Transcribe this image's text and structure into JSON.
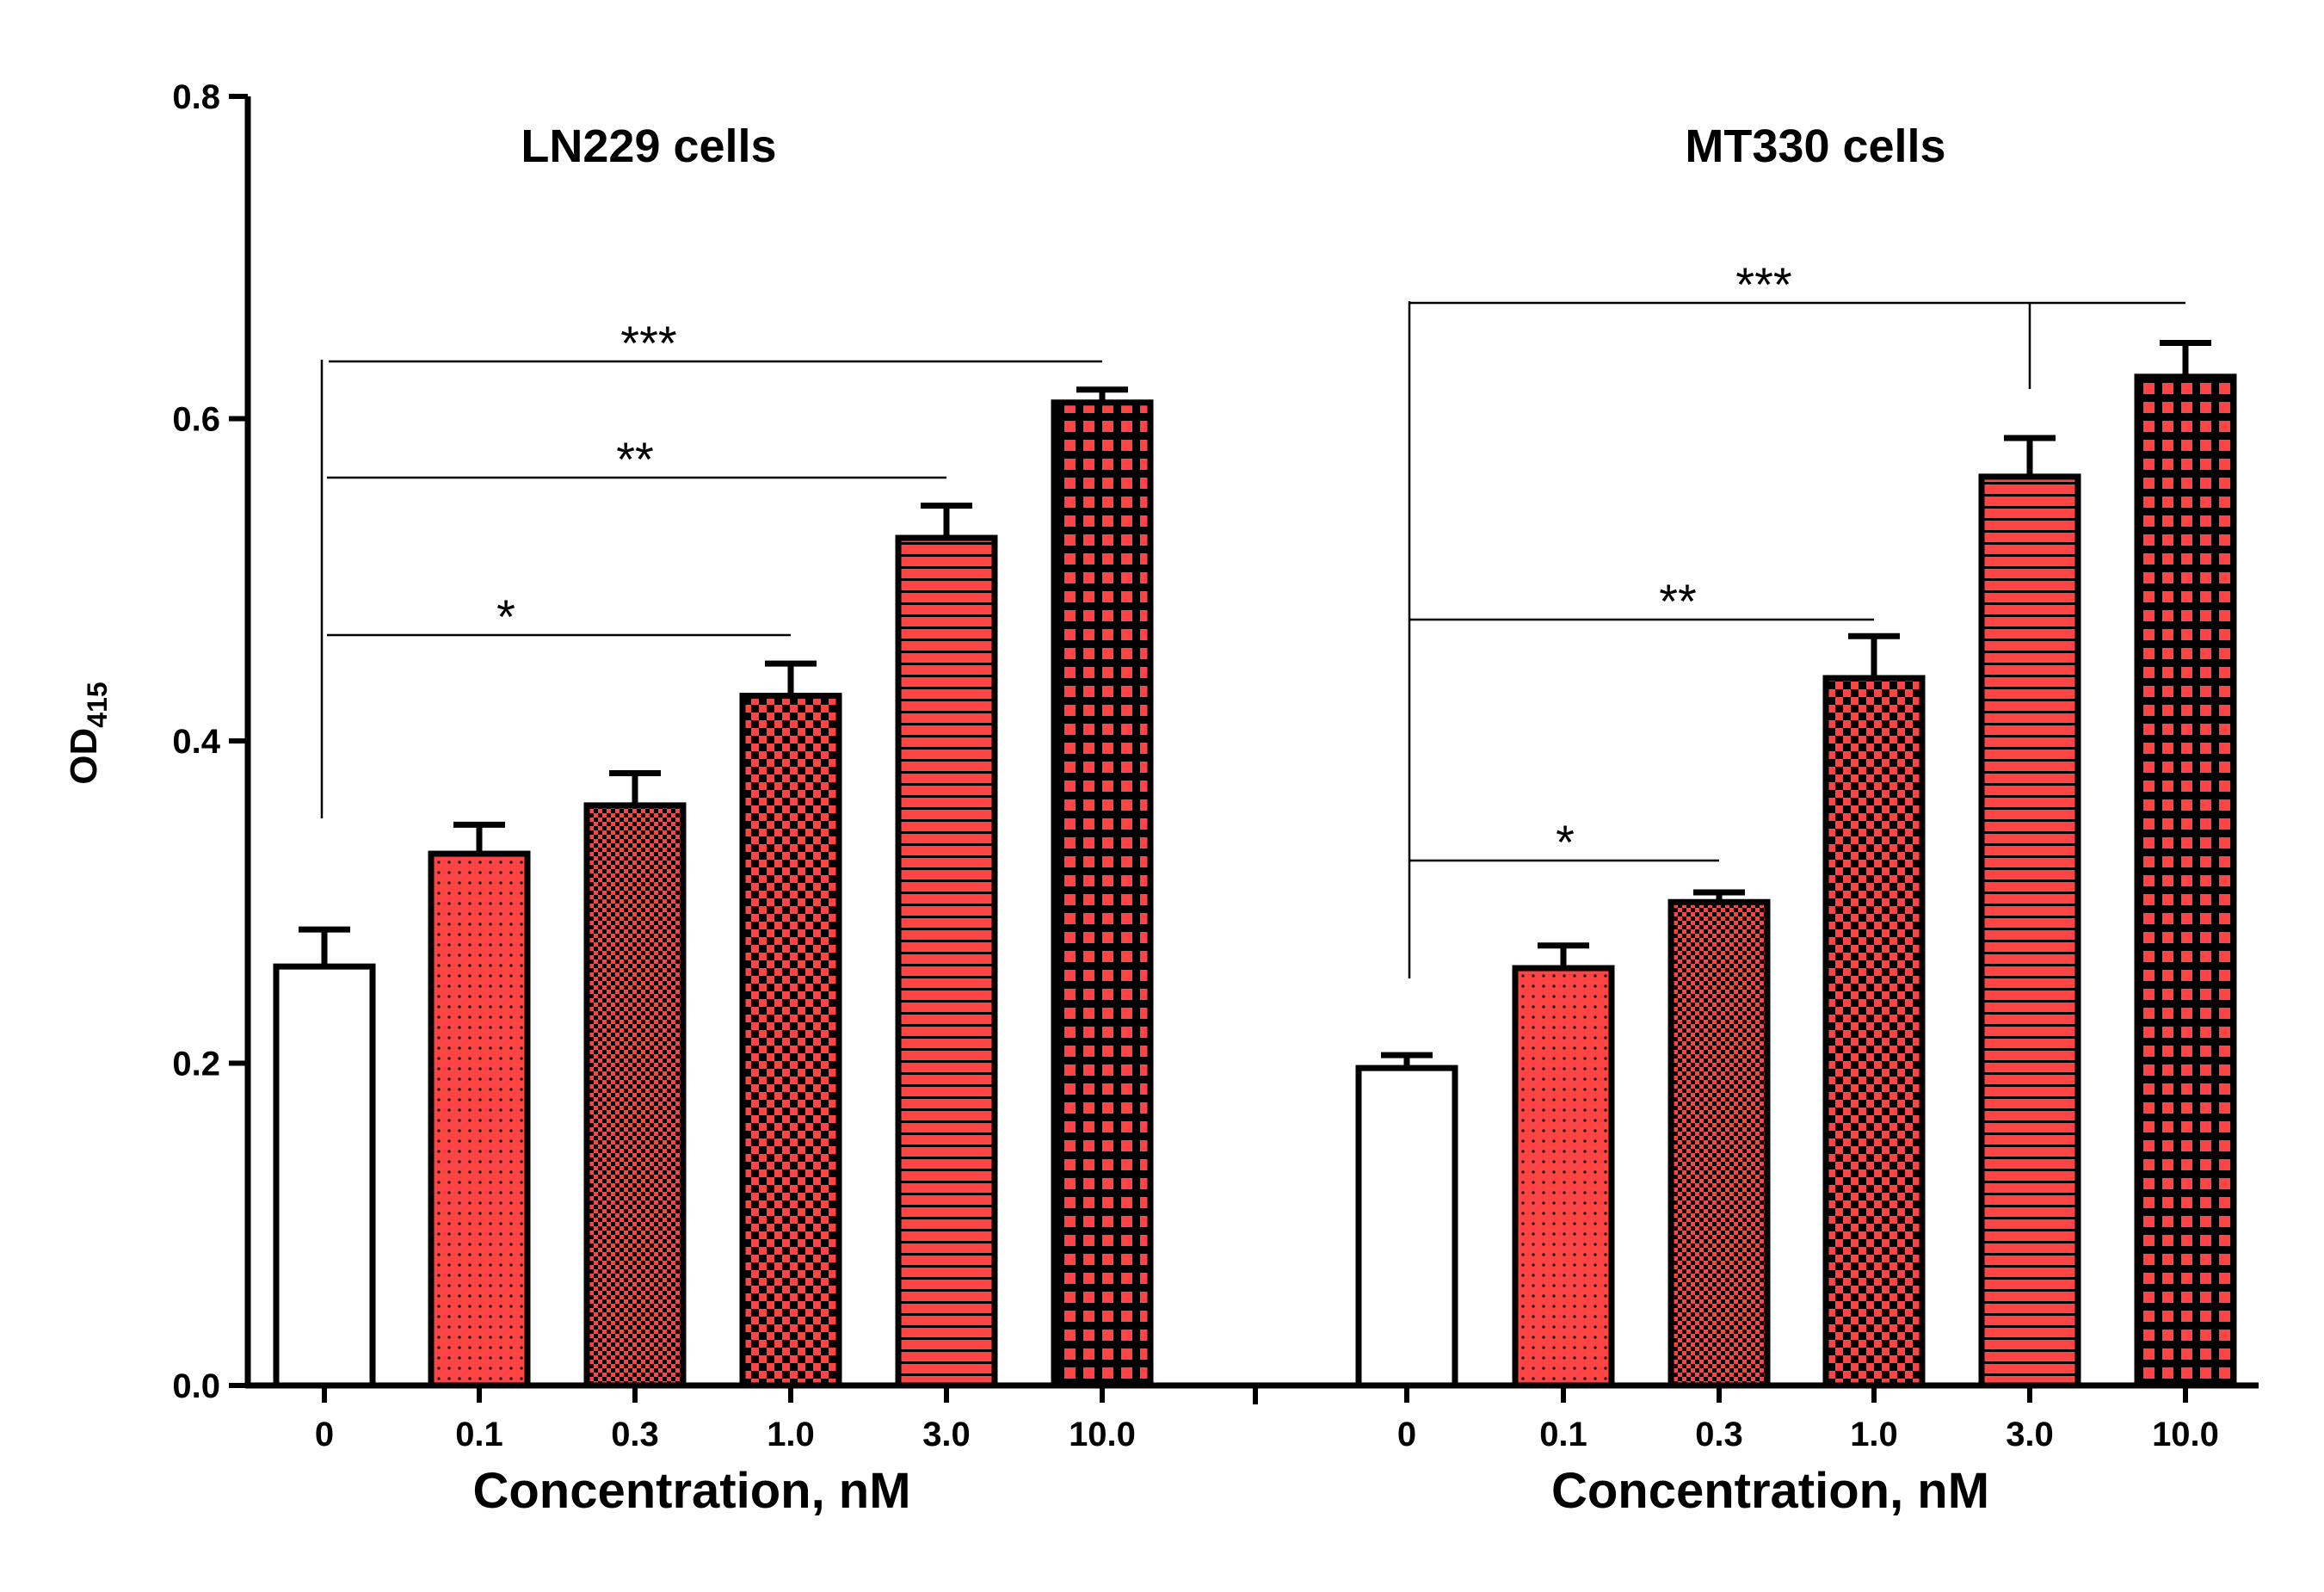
{
  "chart_data": {
    "type": "bar",
    "ylabel": "OD",
    "ylabel_subscript": "415",
    "ylim": [
      0,
      0.8
    ],
    "yticks": [
      "0.0",
      "0.2",
      "0.4",
      "0.6",
      "0.8"
    ],
    "ytick_values": [
      0,
      0.2,
      0.4,
      0.6,
      0.8
    ],
    "colors": {
      "bar_fill": "#ff4444",
      "control_fill": "#ffffff",
      "outline": "#000000"
    },
    "panels": [
      {
        "title": "LN229 cells",
        "xlabel": "Concentration, nM",
        "categories": [
          "0",
          "0.1",
          "0.3",
          "1.0",
          "3.0",
          "10.0"
        ],
        "values": [
          0.26,
          0.33,
          0.36,
          0.428,
          0.526,
          0.61
        ],
        "errors": [
          0.023,
          0.018,
          0.02,
          0.02,
          0.02,
          0.008
        ],
        "patterns": [
          "none",
          "dots",
          "fine-check",
          "check",
          "hstripes",
          "grid"
        ],
        "significance": [
          {
            "label": "*",
            "to": "1.0"
          },
          {
            "label": "**",
            "to": "3.0"
          },
          {
            "label": "***",
            "to": "10.0"
          }
        ]
      },
      {
        "title": "MT330 cells",
        "xlabel": "Concentration, nM",
        "categories": [
          "0",
          "0.1",
          "0.3",
          "1.0",
          "3.0",
          "10.0"
        ],
        "values": [
          0.197,
          0.259,
          0.3,
          0.439,
          0.564,
          0.626
        ],
        "errors": [
          0.008,
          0.014,
          0.006,
          0.026,
          0.024,
          0.021
        ],
        "patterns": [
          "none",
          "dots",
          "fine-check",
          "check",
          "hstripes",
          "grid"
        ],
        "significance": [
          {
            "label": "*",
            "to": "0.3"
          },
          {
            "label": "**",
            "to": "1.0"
          },
          {
            "label": "***",
            "to": "10.0"
          }
        ]
      }
    ]
  }
}
